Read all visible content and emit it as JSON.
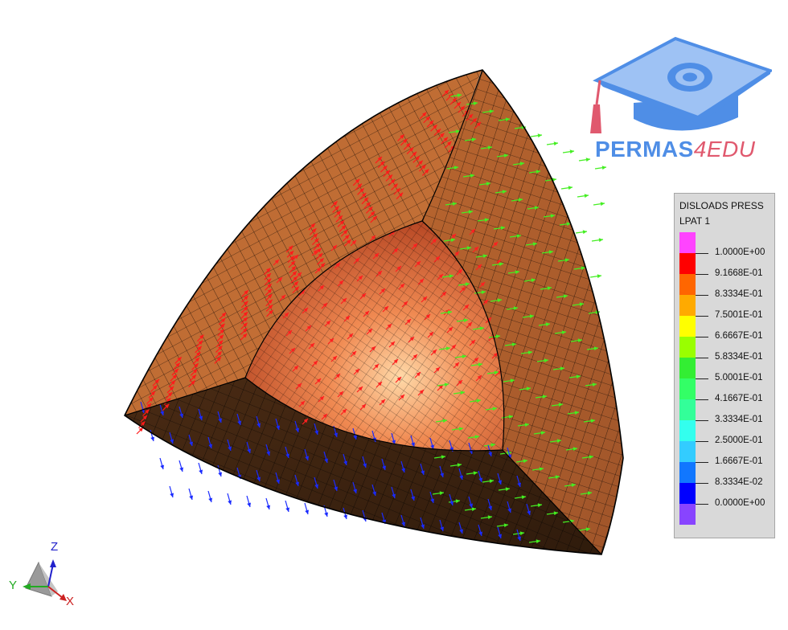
{
  "logo": {
    "part1": "PERMAS",
    "part2": "4EDU"
  },
  "legend": {
    "title": "DISLOADS PRESS",
    "subtitle": "LPAT 1",
    "colors": [
      "#ff44ff",
      "#ff0000",
      "#ff6600",
      "#ffaa00",
      "#ffff00",
      "#99ff00",
      "#33ee33",
      "#33ff66",
      "#33ff99",
      "#33ffee",
      "#33ccff",
      "#1177ff",
      "#0000ff",
      "#8844ff"
    ],
    "labels": [
      "1.0000E+00",
      "9.1668E-01",
      "8.3334E-01",
      "7.5001E-01",
      "6.6667E-01",
      "5.8334E-01",
      "5.0001E-01",
      "4.1667E-01",
      "3.3334E-01",
      "2.5000E-01",
      "1.6667E-01",
      "8.3334E-02",
      "0.0000E+00"
    ]
  },
  "triad": {
    "z": "Z",
    "y": "Y",
    "x": "X"
  }
}
